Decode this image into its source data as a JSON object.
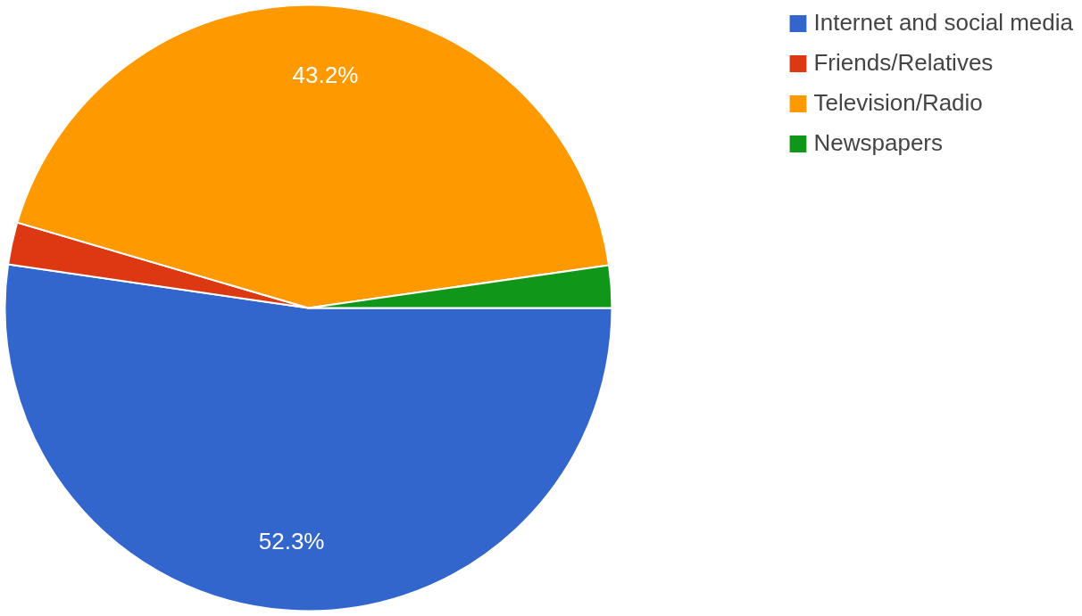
{
  "chart_data": {
    "type": "pie",
    "categories": [
      "Internet and social media",
      "Friends/Relatives",
      "Television/Radio",
      "Newspapers"
    ],
    "values": [
      52.3,
      2.25,
      43.2,
      2.25
    ],
    "colors": [
      "#3366cc",
      "#dc3912",
      "#ff9900",
      "#109618"
    ],
    "value_labels": [
      "52.3%",
      null,
      "43.2%",
      null
    ],
    "legend": "top right"
  }
}
